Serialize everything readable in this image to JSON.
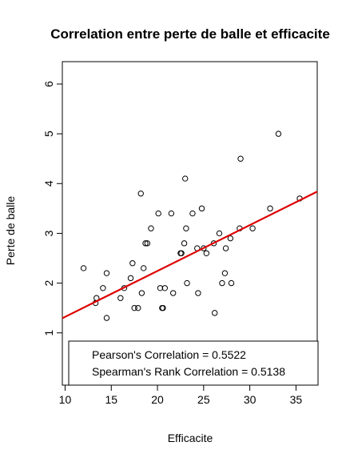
{
  "chart_data": {
    "type": "scatter",
    "title": "Correlation entre perte de balle et efficacite",
    "xlabel": "Efficacite",
    "ylabel": "Perte de balle",
    "xlim": [
      9.7,
      37.3
    ],
    "ylim": [
      -0.05,
      6.45
    ],
    "x_ticks": [
      10,
      15,
      20,
      25,
      30,
      35
    ],
    "y_ticks": [
      1,
      2,
      3,
      4,
      5,
      6
    ],
    "grid": false,
    "point_color": "#000000",
    "regression_line": {
      "color": "#dd0000",
      "intercept": 0.4,
      "slope": 0.0922
    },
    "legend": {
      "placement": "bottom",
      "lines": [
        "Pearson's Correlation = 0.5522",
        "Spearman's Rank Correlation =  0.5138"
      ]
    },
    "series": [
      {
        "points": [
          [
            12.0,
            2.3
          ],
          [
            13.3,
            1.6
          ],
          [
            13.4,
            1.7
          ],
          [
            14.1,
            1.9
          ],
          [
            14.5,
            2.2
          ],
          [
            14.5,
            1.3
          ],
          [
            16.0,
            1.7
          ],
          [
            16.4,
            1.9
          ],
          [
            17.1,
            2.1
          ],
          [
            17.3,
            2.4
          ],
          [
            17.5,
            1.5
          ],
          [
            17.9,
            1.5
          ],
          [
            18.2,
            3.8
          ],
          [
            18.3,
            1.8
          ],
          [
            18.5,
            2.3
          ],
          [
            18.7,
            2.8
          ],
          [
            18.9,
            2.8
          ],
          [
            19.3,
            3.1
          ],
          [
            20.1,
            3.4
          ],
          [
            20.3,
            1.9
          ],
          [
            20.5,
            1.5
          ],
          [
            20.6,
            1.5
          ],
          [
            20.8,
            1.9
          ],
          [
            21.5,
            3.4
          ],
          [
            21.7,
            1.8
          ],
          [
            22.5,
            2.6
          ],
          [
            22.6,
            2.6
          ],
          [
            22.9,
            2.8
          ],
          [
            23.0,
            4.1
          ],
          [
            23.1,
            3.1
          ],
          [
            23.2,
            2.0
          ],
          [
            23.8,
            3.4
          ],
          [
            24.3,
            2.7
          ],
          [
            24.4,
            1.8
          ],
          [
            24.8,
            3.5
          ],
          [
            25.0,
            2.7
          ],
          [
            25.3,
            2.6
          ],
          [
            26.1,
            2.8
          ],
          [
            26.2,
            1.4
          ],
          [
            26.7,
            3.0
          ],
          [
            27.0,
            2.0
          ],
          [
            27.3,
            2.2
          ],
          [
            27.4,
            2.7
          ],
          [
            27.9,
            2.9
          ],
          [
            28.0,
            2.0
          ],
          [
            28.9,
            3.1
          ],
          [
            29.0,
            4.5
          ],
          [
            30.3,
            3.1
          ],
          [
            32.2,
            3.5
          ],
          [
            33.1,
            5.0
          ],
          [
            35.4,
            3.7
          ]
        ]
      }
    ]
  }
}
